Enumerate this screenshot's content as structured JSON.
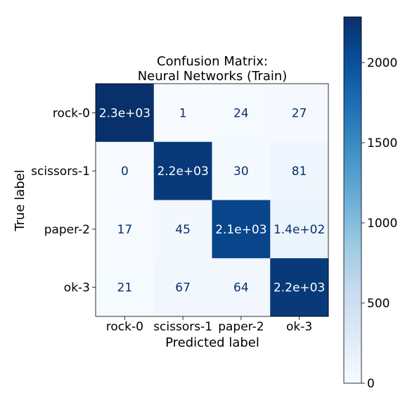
{
  "chart_data": {
    "type": "heatmap",
    "title_lines": [
      "Confusion Matrix:",
      "Neural Networks (Train)"
    ],
    "xlabel": "Predicted label",
    "ylabel": "True label",
    "x_categories": [
      "rock-0",
      "scissors-1",
      "paper-2",
      "ok-3"
    ],
    "y_categories": [
      "rock-0",
      "scissors-1",
      "paper-2",
      "ok-3"
    ],
    "values": [
      [
        2300,
        1,
        24,
        27
      ],
      [
        0,
        2200,
        30,
        81
      ],
      [
        17,
        45,
        2100,
        140
      ],
      [
        21,
        67,
        64,
        2200
      ]
    ],
    "cell_labels": [
      [
        "2.3e+03",
        "1",
        "24",
        "27"
      ],
      [
        "0",
        "2.2e+03",
        "30",
        "81"
      ],
      [
        "17",
        "45",
        "2.1e+03",
        "1.4e+02"
      ],
      [
        "21",
        "67",
        "64",
        "2.2e+03"
      ]
    ],
    "colormap": "Blues",
    "colormap_stops": [
      "#f7fbff",
      "#deebf7",
      "#c6dbef",
      "#9ecae1",
      "#6baed6",
      "#4292c6",
      "#2171b5",
      "#08519c",
      "#08306b"
    ],
    "vmin": 0,
    "vmax": 2285,
    "colorbar_ticks": [
      0,
      500,
      1000,
      1500,
      2000
    ],
    "colorbar_tick_labels": [
      "0",
      "500",
      "1000",
      "1500",
      "2000"
    ],
    "text_color_light": "#ffffff",
    "text_color_dark": "#08306b"
  }
}
